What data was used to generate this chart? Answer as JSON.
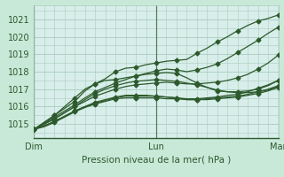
{
  "title": "",
  "xlabel": "Pression niveau de la mer( hPa )",
  "bg_color": "#c8e8d8",
  "plot_bg_color": "#d8eeea",
  "grid_color": "#a8ccbc",
  "line_color": "#2d5a2d",
  "marker_color": "#2d5a2d",
  "ylim": [
    1014.2,
    1021.8
  ],
  "xlim": [
    0,
    48
  ],
  "xticks": [
    0,
    24,
    48
  ],
  "xtick_labels": [
    "Dim",
    "Lun",
    "Mar"
  ],
  "yticks": [
    1015,
    1016,
    1017,
    1018,
    1019,
    1020,
    1021
  ],
  "series": [
    [
      1014.7,
      1015.1,
      1015.5,
      1015.9,
      1016.3,
      1016.9,
      1017.3,
      1017.6,
      1018.0,
      1018.2,
      1018.25,
      1018.4,
      1018.5,
      1018.6,
      1018.65,
      1018.7,
      1019.05,
      1019.35,
      1019.7,
      1020.0,
      1020.35,
      1020.65,
      1020.9,
      1021.05,
      1021.25
    ],
    [
      1014.7,
      1015.05,
      1015.4,
      1015.75,
      1016.1,
      1016.5,
      1016.85,
      1017.1,
      1017.35,
      1017.55,
      1017.75,
      1017.9,
      1018.05,
      1018.15,
      1018.1,
      1018.0,
      1018.1,
      1018.25,
      1018.45,
      1018.75,
      1019.1,
      1019.45,
      1019.8,
      1020.2,
      1020.55
    ],
    [
      1014.7,
      1015.0,
      1015.3,
      1015.65,
      1016.0,
      1016.3,
      1016.6,
      1016.8,
      1017.0,
      1017.15,
      1017.25,
      1017.3,
      1017.35,
      1017.4,
      1017.35,
      1017.3,
      1017.3,
      1017.35,
      1017.4,
      1017.5,
      1017.65,
      1017.85,
      1018.15,
      1018.5,
      1018.95
    ],
    [
      1014.7,
      1014.9,
      1015.15,
      1015.45,
      1015.75,
      1016.0,
      1016.25,
      1016.4,
      1016.55,
      1016.65,
      1016.65,
      1016.65,
      1016.6,
      1016.55,
      1016.5,
      1016.4,
      1016.4,
      1016.45,
      1016.5,
      1016.55,
      1016.6,
      1016.7,
      1016.85,
      1017.0,
      1017.2
    ],
    [
      1014.7,
      1014.85,
      1015.1,
      1015.4,
      1015.7,
      1015.95,
      1016.15,
      1016.3,
      1016.45,
      1016.5,
      1016.5,
      1016.5,
      1016.5,
      1016.45,
      1016.45,
      1016.4,
      1016.4,
      1016.4,
      1016.45,
      1016.5,
      1016.55,
      1016.65,
      1016.75,
      1016.9,
      1017.1
    ],
    [
      1014.7,
      1014.9,
      1015.15,
      1015.45,
      1015.75,
      1016.0,
      1016.2,
      1016.35,
      1016.5,
      1016.6,
      1016.6,
      1016.6,
      1016.6,
      1016.55,
      1016.5,
      1016.45,
      1016.45,
      1016.5,
      1016.55,
      1016.65,
      1016.7,
      1016.85,
      1017.05,
      1017.25,
      1017.5
    ],
    [
      1014.7,
      1015.1,
      1015.5,
      1016.0,
      1016.5,
      1017.0,
      1017.3,
      1017.5,
      1017.55,
      1017.65,
      1017.75,
      1017.85,
      1017.9,
      1017.95,
      1017.9,
      1017.65,
      1017.35,
      1017.1,
      1016.9,
      1016.85,
      1016.85,
      1016.9,
      1017.0,
      1017.2,
      1017.5
    ],
    [
      1014.7,
      1015.0,
      1015.3,
      1015.65,
      1016.0,
      1016.4,
      1016.75,
      1017.0,
      1017.2,
      1017.35,
      1017.45,
      1017.5,
      1017.55,
      1017.5,
      1017.45,
      1017.35,
      1017.25,
      1017.1,
      1016.95,
      1016.85,
      1016.8,
      1016.8,
      1016.85,
      1016.95,
      1017.15
    ]
  ],
  "marker_every": 2,
  "linewidth": 0.9,
  "markersize": 2.5
}
